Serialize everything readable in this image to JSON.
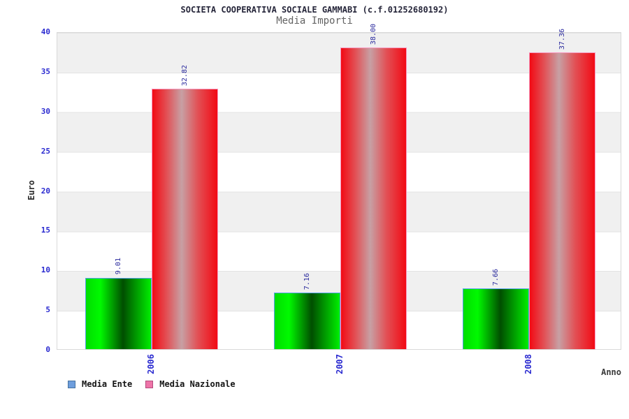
{
  "header": {
    "title": "SOCIETA COOPERATIVA SOCIALE GAMMABI (c.f.01252680192)",
    "subtitle": "Media Importi"
  },
  "chart_data": {
    "type": "bar",
    "title": "SOCIETA COOPERATIVA SOCIALE GAMMABI (c.f.01252680192)",
    "subtitle": "Media Importi",
    "xlabel": "Anno",
    "ylabel": "Euro",
    "ylim": [
      0,
      40
    ],
    "yticks": [
      0,
      5,
      10,
      15,
      20,
      25,
      30,
      35,
      40
    ],
    "categories": [
      "2006",
      "2007",
      "2008"
    ],
    "series": [
      {
        "name": "Media Ente",
        "values": [
          9.01,
          7.16,
          7.66
        ],
        "labels": [
          "9.01",
          "7.16",
          "7.66"
        ],
        "legend_swatch_color": "#6e9edd",
        "legend_swatch_border": "#46729f",
        "bar_border_color": "#55a0e8",
        "bar_gradient": [
          "#00dd00",
          "#004e00",
          "#00ee00"
        ]
      },
      {
        "name": "Media Nazionale",
        "values": [
          32.82,
          38.0,
          37.36
        ],
        "labels": [
          "32.82",
          "38.00",
          "37.36"
        ],
        "legend_swatch_color": "#ee74a8",
        "legend_swatch_border": "#b34b7d",
        "bar_border_color": "#f799c0",
        "bar_gradient": [
          "#f20a14",
          "#c7a0a4",
          "#f20a14"
        ]
      }
    ],
    "grid": {
      "style": "alternating horizontal bands every 5 units",
      "band_color": "#f0f0f0",
      "line_color": "#e3e3e3"
    },
    "legend_position": "bottom-left",
    "tick_label_color": "#2a2ad0",
    "value_label_color": "#2b2b9e",
    "value_label_orientation": "vertical",
    "category_label_orientation": "vertical"
  }
}
